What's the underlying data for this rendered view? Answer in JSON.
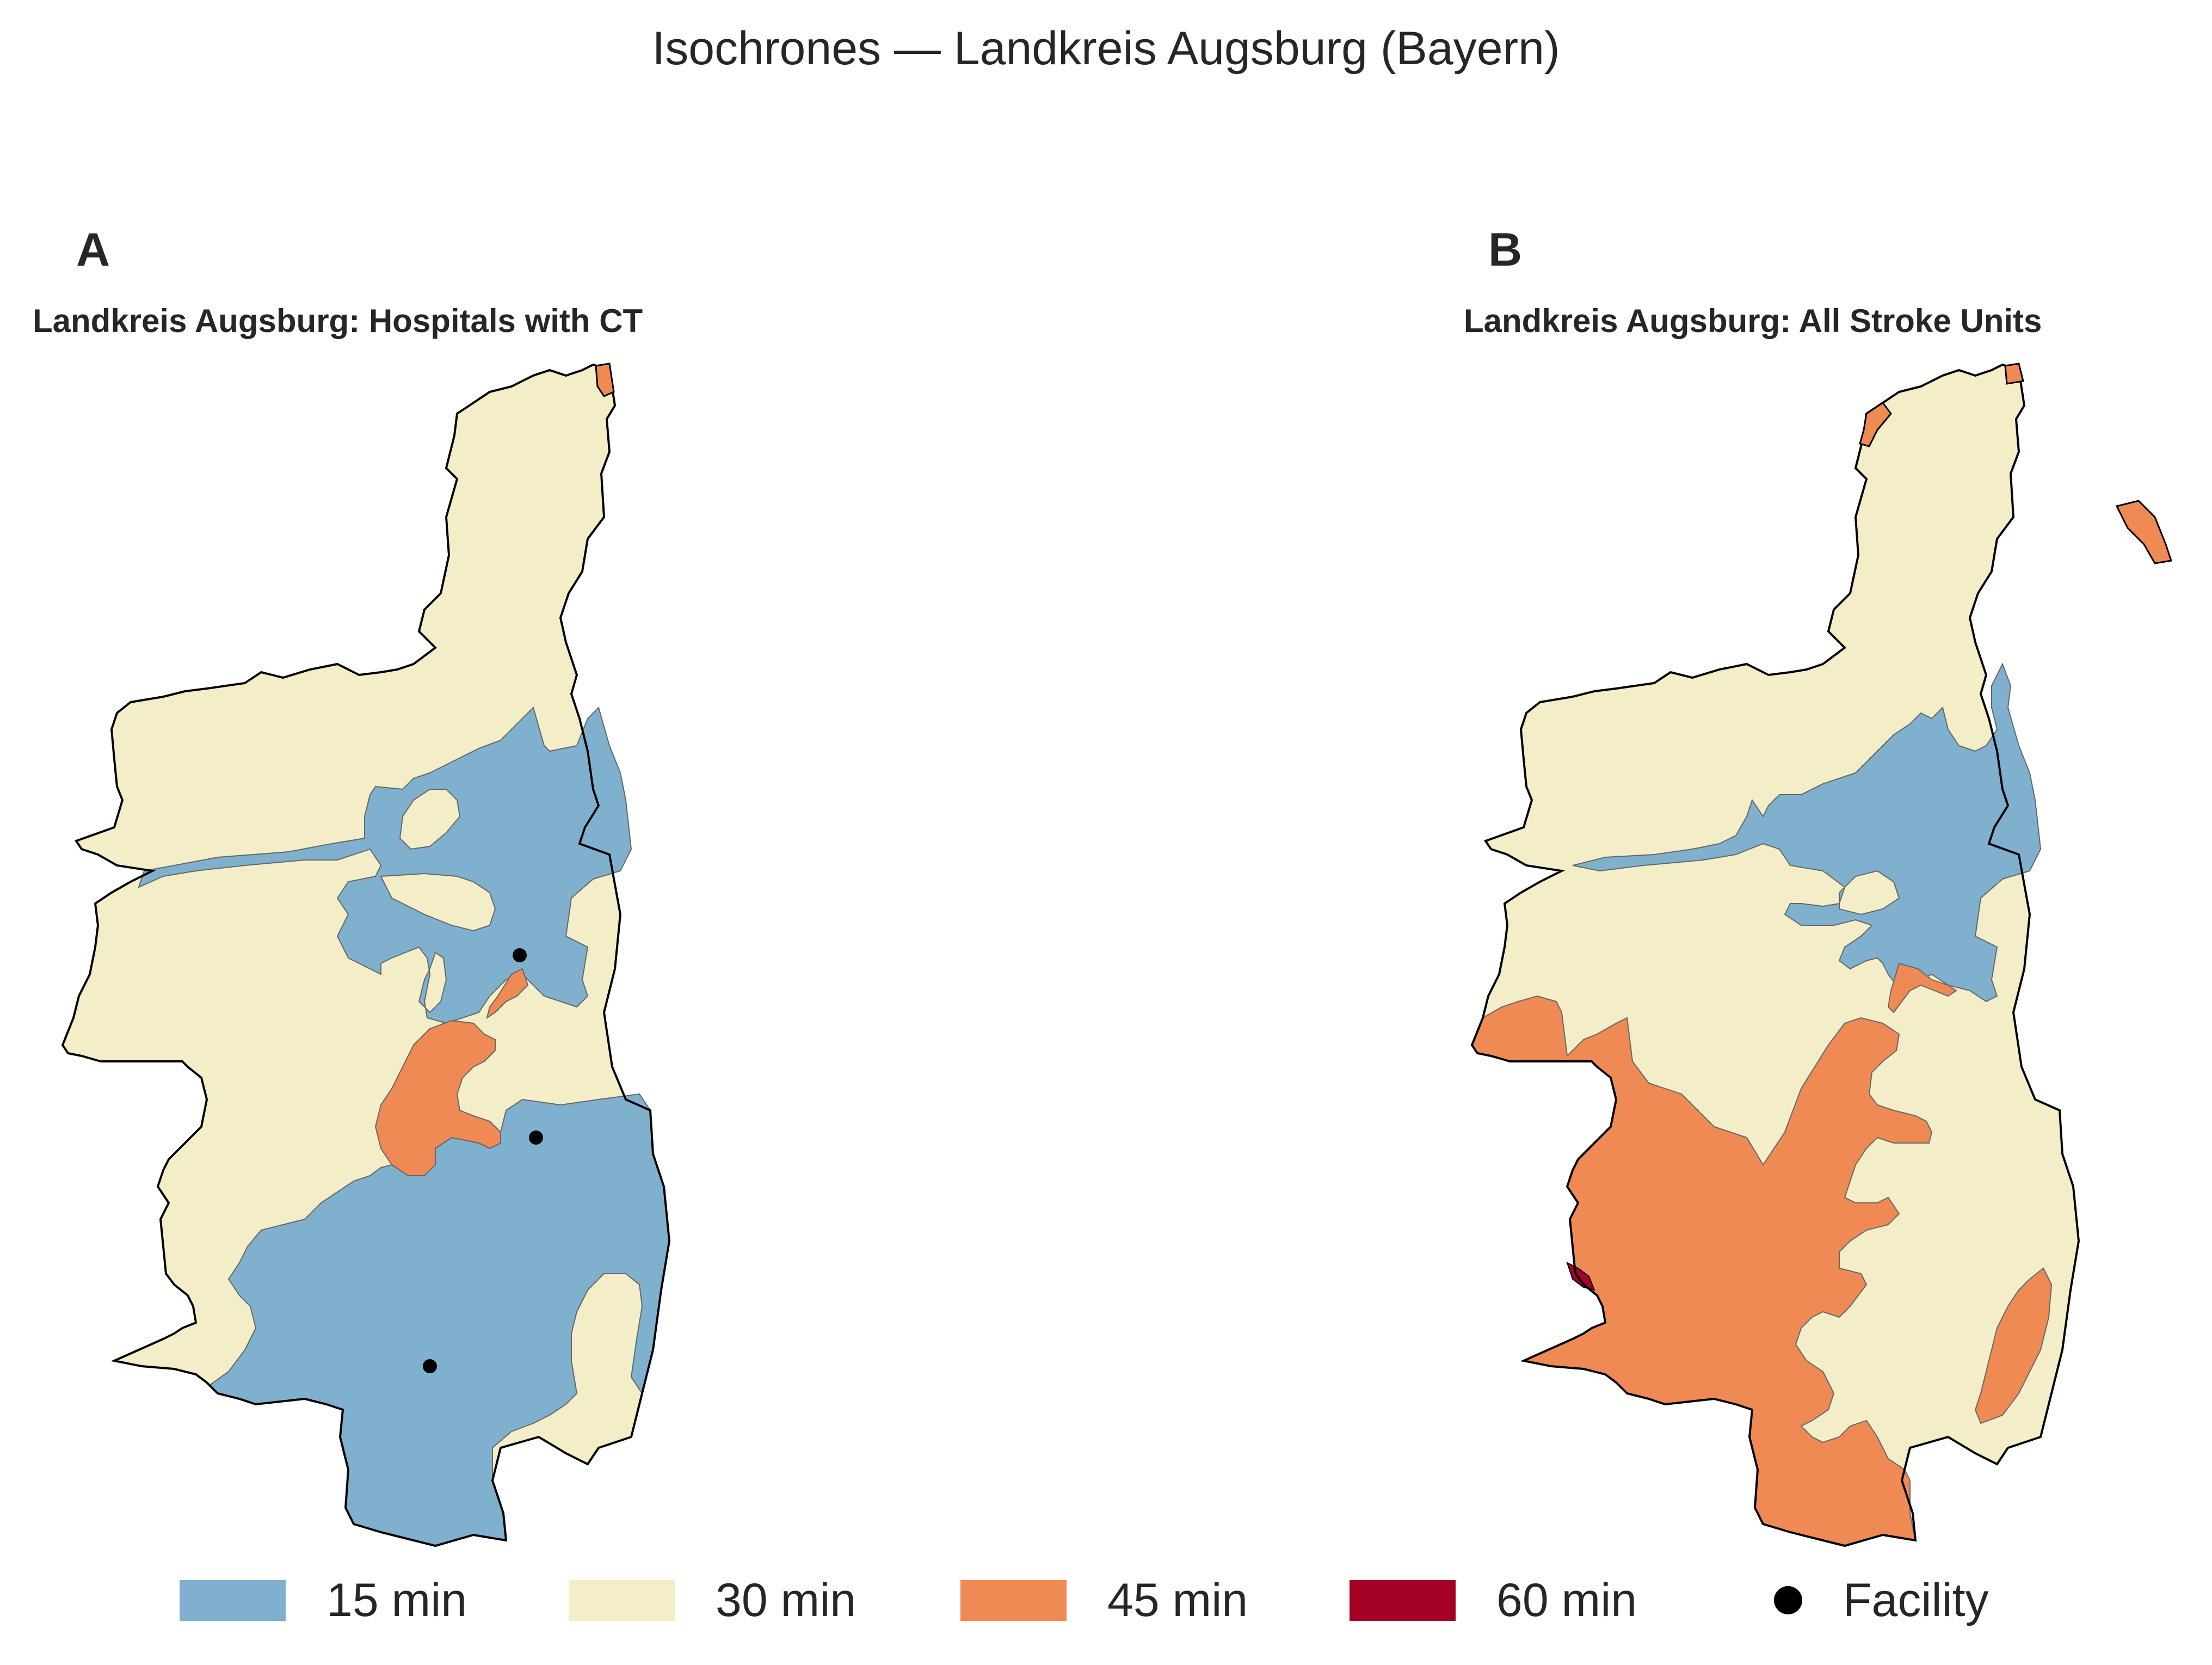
{
  "title": "Isochrones — Landkreis Augsburg (Bayern)",
  "panels": [
    {
      "letter": "A",
      "title": "Landkreis Augsburg: Hospitals with CT"
    },
    {
      "letter": "B",
      "title": "Landkreis Augsburg: All Stroke Units"
    }
  ],
  "legend": [
    {
      "label": "15 min",
      "color": "#7fb1cf"
    },
    {
      "label": "30 min",
      "color": "#f3eec8"
    },
    {
      "label": "45 min",
      "color": "#f08a55"
    },
    {
      "label": "60 min",
      "color": "#a50026"
    },
    {
      "label": "Facility",
      "icon": "black-dot"
    }
  ],
  "colors": {
    "band_15": "#7fb1cf",
    "band_30": "#f3eec8",
    "band_45": "#f08a55",
    "band_60": "#a50026",
    "boundary": "#000000",
    "facility": "#000000"
  }
}
